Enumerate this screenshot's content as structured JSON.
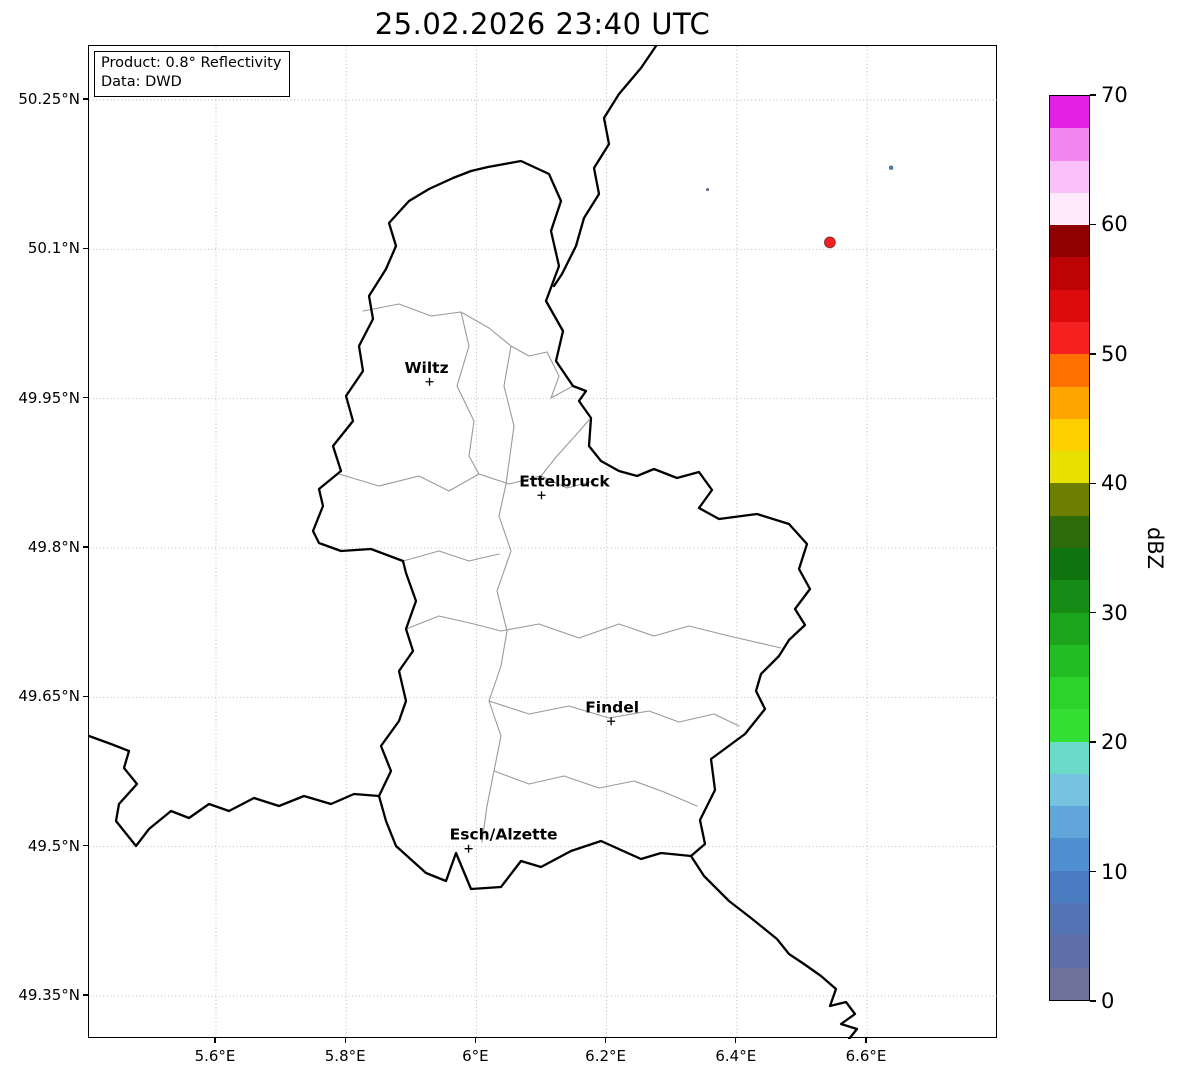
{
  "title": "25.02.2026 23:40 UTC",
  "info_box": {
    "line1": "Product: 0.8° Reflectivity",
    "line2": "Data: DWD"
  },
  "x_axis": {
    "ticks": [
      {
        "label": "5.6°E",
        "lon": 5.6
      },
      {
        "label": "5.8°E",
        "lon": 5.8
      },
      {
        "label": "6°E",
        "lon": 6.0
      },
      {
        "label": "6.2°E",
        "lon": 6.2
      },
      {
        "label": "6.4°E",
        "lon": 6.4
      },
      {
        "label": "6.6°E",
        "lon": 6.6
      }
    ]
  },
  "y_axis": {
    "ticks": [
      {
        "label": "50.25°N",
        "lat": 50.25
      },
      {
        "label": "50.1°N",
        "lat": 50.1
      },
      {
        "label": "49.95°N",
        "lat": 49.95
      },
      {
        "label": "49.8°N",
        "lat": 49.8
      },
      {
        "label": "49.65°N",
        "lat": 49.65
      },
      {
        "label": "49.5°N",
        "lat": 49.5
      },
      {
        "label": "49.35°N",
        "lat": 49.35
      }
    ]
  },
  "cities": [
    {
      "name": "Wiltz",
      "lon": 5.928,
      "lat": 49.967,
      "label_dx": -3
    },
    {
      "name": "Ettelbruck",
      "lon": 6.1,
      "lat": 49.853,
      "label_dx": 23
    },
    {
      "name": "Findel",
      "lon": 6.207,
      "lat": 49.626,
      "label_dx": 1
    },
    {
      "name": "Esch/Alzette",
      "lon": 5.988,
      "lat": 49.498,
      "label_dx": 35
    }
  ],
  "echoes": [
    {
      "lon": 6.543,
      "lat": 50.107,
      "dbz": 50,
      "radius": 5.5
    },
    {
      "lon": 6.637,
      "lat": 50.182,
      "dbz": 8,
      "radius": 2.0
    },
    {
      "lon": 6.355,
      "lat": 50.16,
      "dbz": 3,
      "radius": 1.3
    }
  ],
  "colorbar": {
    "label": "dBZ",
    "min": 0,
    "max": 70,
    "band_step": 2.5,
    "tick_values": [
      0,
      10,
      20,
      30,
      40,
      50,
      60,
      70
    ],
    "colors": [
      "#6e739c",
      "#5e6fa8",
      "#5474b6",
      "#4b7cc2",
      "#4f8fd0",
      "#60a6da",
      "#75c3e0",
      "#6adbc8",
      "#35e035",
      "#2bd32b",
      "#23bc23",
      "#1ca41c",
      "#168c16",
      "#107510",
      "#2e6b0a",
      "#6e7e00",
      "#e8e000",
      "#ffd000",
      "#ffa400",
      "#ff7000",
      "#f52020",
      "#dc0c0c",
      "#bc0404",
      "#8f0000",
      "#fdeafd",
      "#f9c0f9",
      "#f287f2",
      "#e520e5"
    ]
  }
}
